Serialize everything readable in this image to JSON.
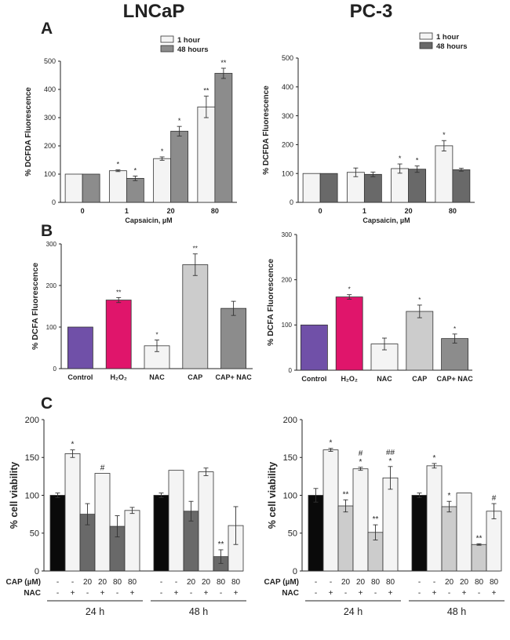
{
  "figure": {
    "col_titles": [
      "LNCaP",
      "PC-3"
    ],
    "panel_letters": [
      "A",
      "B",
      "C"
    ]
  },
  "colors": {
    "white": "#f4f4f4",
    "gray_dark": "#8c8c8c",
    "gray_darker": "#696969",
    "gray_light": "#cccccc",
    "purple": "#7050a8",
    "pink": "#e0156b",
    "black": "#0a0a0a"
  },
  "chart_data": [
    {
      "id": "A-LNCaP",
      "panel": "A",
      "type": "bar",
      "ylabel": "% DCFDA Fluorescence",
      "xlabel": "Capsaicin, µM",
      "ylim": [
        0,
        500
      ],
      "yticks": [
        0,
        100,
        200,
        300,
        400,
        500
      ],
      "categories": [
        "0",
        "1",
        "20",
        "80"
      ],
      "legend": {
        "position": "top-left",
        "entries": [
          {
            "label": "1 hour",
            "color": "white"
          },
          {
            "label": "48 hours",
            "color": "gray_dark"
          }
        ]
      },
      "series": [
        {
          "name": "1 hour",
          "color": "white",
          "values": [
            100,
            112,
            155,
            338
          ],
          "errors": [
            0,
            3,
            6,
            38
          ],
          "sig": [
            "",
            "*",
            "*",
            "**"
          ]
        },
        {
          "name": "48 hours",
          "color": "gray_dark",
          "values": [
            100,
            85,
            252,
            457
          ],
          "errors": [
            0,
            8,
            17,
            18
          ],
          "sig": [
            "",
            "*",
            "*",
            "**"
          ]
        }
      ]
    },
    {
      "id": "A-PC3",
      "panel": "A",
      "type": "bar",
      "ylabel": "% DCFDA Fluorescence",
      "xlabel": "Capsaicin, µM",
      "ylim": [
        0,
        500
      ],
      "yticks": [
        0,
        100,
        200,
        300,
        400,
        500
      ],
      "categories": [
        "0",
        "1",
        "20",
        "80"
      ],
      "legend": {
        "position": "top-right",
        "entries": [
          {
            "label": "1 hour",
            "color": "white"
          },
          {
            "label": "48 hours",
            "color": "gray_darker"
          }
        ]
      },
      "series": [
        {
          "name": "1 hour",
          "color": "white",
          "values": [
            100,
            104,
            117,
            196
          ],
          "errors": [
            0,
            15,
            16,
            18
          ],
          "sig": [
            "",
            "",
            "*",
            "*"
          ]
        },
        {
          "name": "48 hours",
          "color": "gray_darker",
          "values": [
            100,
            97,
            115,
            113
          ],
          "errors": [
            0,
            8,
            11,
            5
          ],
          "sig": [
            "",
            "",
            "*",
            ""
          ]
        }
      ]
    },
    {
      "id": "B-LNCaP",
      "panel": "B",
      "type": "bar",
      "ylabel": "% DCFA Fluorescence",
      "ylim": [
        0,
        300
      ],
      "yticks": [
        0,
        100,
        200,
        300
      ],
      "categories": [
        "Control",
        "H₂O₂",
        "NAC",
        "CAP",
        "CAP+ NAC"
      ],
      "values": [
        100,
        165,
        55,
        250,
        145
      ],
      "errors": [
        0,
        6,
        14,
        26,
        17
      ],
      "sig": [
        "",
        "**",
        "*",
        "**",
        ""
      ],
      "bar_colors": [
        "purple",
        "pink",
        "white",
        "gray_light",
        "gray_dark"
      ]
    },
    {
      "id": "B-PC3",
      "panel": "B",
      "type": "bar",
      "ylabel": "% DCFA Fluorescence",
      "ylim": [
        0,
        300
      ],
      "yticks": [
        0,
        100,
        200,
        300
      ],
      "categories": [
        "Control",
        "H₂O₂",
        "NAC",
        "CAP",
        "CAP+ NAC"
      ],
      "values": [
        100,
        162,
        58,
        130,
        70
      ],
      "errors": [
        0,
        5,
        13,
        14,
        10
      ],
      "sig": [
        "",
        "*",
        "",
        "*",
        "*"
      ],
      "bar_colors": [
        "purple",
        "pink",
        "white",
        "gray_light",
        "gray_dark"
      ]
    },
    {
      "id": "C-LNCaP",
      "panel": "C",
      "type": "bar",
      "ylabel": "% cell viability",
      "ylim": [
        0,
        200
      ],
      "yticks": [
        0,
        50,
        100,
        150,
        200
      ],
      "row_labels": [
        "CAP (µM)",
        "NAC"
      ],
      "groups": [
        {
          "name": "24 h",
          "cap": [
            "-",
            "-",
            "20",
            "20",
            "80",
            "80"
          ],
          "nac": [
            "-",
            "+",
            "-",
            "+",
            "-",
            "+"
          ],
          "values": [
            100,
            155,
            75,
            129,
            59,
            80
          ],
          "errors": [
            3,
            5,
            14,
            0,
            14,
            4
          ],
          "sig": [
            "",
            "*",
            "",
            "#",
            "",
            ""
          ],
          "bar_colors": [
            "black",
            "white",
            "gray_darker",
            "white",
            "gray_darker",
            "white"
          ]
        },
        {
          "name": "48 h",
          "cap": [
            "-",
            "-",
            "20",
            "20",
            "80",
            "80"
          ],
          "nac": [
            "-",
            "+",
            "-",
            "+",
            "-",
            "+"
          ],
          "values": [
            100,
            133,
            79,
            131,
            19,
            60
          ],
          "errors": [
            3,
            0,
            13,
            5,
            9,
            25
          ],
          "sig": [
            "",
            "",
            "",
            "",
            "**",
            ""
          ],
          "bar_colors": [
            "black",
            "white",
            "gray_darker",
            "white",
            "gray_darker",
            "white"
          ]
        }
      ]
    },
    {
      "id": "C-PC3",
      "panel": "C",
      "type": "bar",
      "ylabel": "% cell viability",
      "ylim": [
        0,
        200
      ],
      "yticks": [
        0,
        50,
        100,
        150,
        200
      ],
      "row_labels": [
        "CAP (µM)",
        "NAC"
      ],
      "groups": [
        {
          "name": "24 h",
          "cap": [
            "-",
            "-",
            "20",
            "20",
            "80",
            "80"
          ],
          "nac": [
            "-",
            "+",
            "-",
            "+",
            "-",
            "+"
          ],
          "values": [
            100,
            160,
            86,
            135,
            51,
            123
          ],
          "errors": [
            9,
            2,
            8,
            2,
            10,
            15
          ],
          "sig": [
            "",
            "*",
            "**",
            "#\n*",
            "**",
            "##\n*"
          ],
          "bar_colors": [
            "black",
            "white",
            "gray_light",
            "white",
            "gray_light",
            "white"
          ]
        },
        {
          "name": "48 h",
          "cap": [
            "-",
            "-",
            "20",
            "20",
            "80",
            "80"
          ],
          "nac": [
            "-",
            "+",
            "-",
            "+",
            "-",
            "+"
          ],
          "values": [
            100,
            139,
            85,
            103,
            35,
            79
          ],
          "errors": [
            3,
            3,
            7,
            0,
            1,
            10
          ],
          "sig": [
            "",
            "*",
            "*",
            "",
            "**",
            "#"
          ],
          "bar_colors": [
            "black",
            "white",
            "gray_light",
            "white",
            "gray_light",
            "white"
          ]
        }
      ]
    }
  ]
}
